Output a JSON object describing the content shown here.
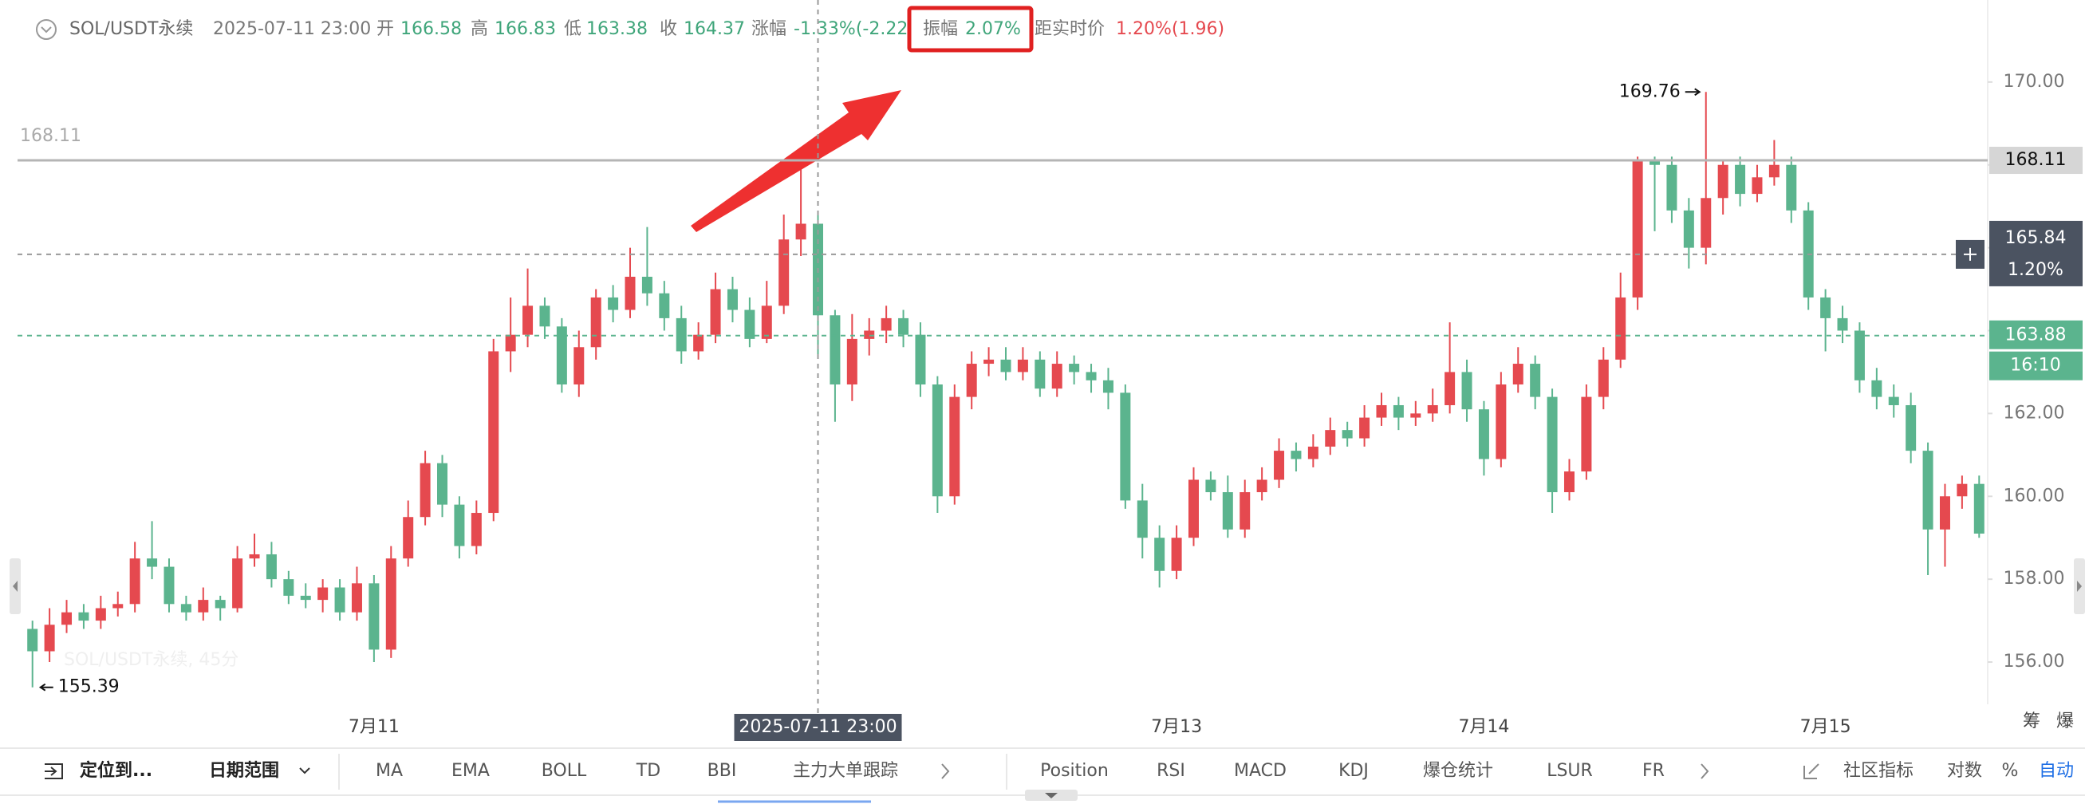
{
  "header": {
    "symbol": "SOL/USDT永续",
    "time": "2025-07-11 23:00",
    "open_label": "开",
    "high_label": "高",
    "low_label": "低",
    "close_label": "收",
    "change_label": "涨幅",
    "change": "-1.33%(-2.22",
    "amplitude_label": "振幅",
    "amplitude": "2.07%",
    "distance_label": "距实时价",
    "distance": "1.20%(1.96)"
  },
  "chart_data": {
    "type": "candlestick",
    "watermark": "SOL/USDT永续, 45分",
    "categories": [
      null,
      null,
      null,
      null,
      null,
      null,
      null,
      null,
      null,
      null,
      null,
      null,
      null,
      null,
      null,
      null,
      null,
      null,
      null,
      null,
      "7月11",
      null,
      null,
      null,
      null,
      null,
      null,
      null,
      null,
      null,
      null,
      null,
      null,
      null,
      null,
      null,
      null,
      null,
      null,
      null,
      null,
      null,
      null,
      null,
      null,
      null,
      null,
      null,
      null,
      null,
      null,
      null,
      null,
      null,
      null,
      null,
      null,
      null,
      null,
      null,
      null,
      null,
      null,
      null,
      null,
      null,
      null,
      "7月13",
      null,
      null,
      null,
      null,
      null,
      null,
      null,
      null,
      null,
      null,
      null,
      null,
      null,
      null,
      null,
      null,
      null,
      "7月14",
      null,
      null,
      null,
      null,
      null,
      null,
      null,
      null,
      null,
      null,
      null,
      null,
      null,
      null,
      null,
      null,
      null,
      null,
      null,
      "7月15",
      null,
      null,
      null,
      null,
      null,
      null,
      null,
      null,
      null
    ],
    "open": [
      156.8,
      156.26,
      156.9,
      157.2,
      157.0,
      157.3,
      157.4,
      158.5,
      158.3,
      157.4,
      157.2,
      157.5,
      157.3,
      158.5,
      158.6,
      158.0,
      157.6,
      157.5,
      157.8,
      157.2,
      157.9,
      156.3,
      158.5,
      159.5,
      160.8,
      159.8,
      158.8,
      159.6,
      163.5,
      163.9,
      164.6,
      164.1,
      162.7,
      163.6,
      164.8,
      164.5,
      165.3,
      164.9,
      164.3,
      163.5,
      163.9,
      165.0,
      164.5,
      163.8,
      164.6,
      166.2,
      166.58,
      164.37,
      162.7,
      163.8,
      164.0,
      164.3,
      163.9,
      162.7,
      160.0,
      162.4,
      163.2,
      163.3,
      163.0,
      163.3,
      162.6,
      163.2,
      163.0,
      162.8,
      162.5,
      159.9,
      159.0,
      158.2,
      159.0,
      160.4,
      160.1,
      159.2,
      160.1,
      160.4,
      161.1,
      160.9,
      161.2,
      161.6,
      161.4,
      161.9,
      162.2,
      161.9,
      162.0,
      162.2,
      163.0,
      162.1,
      160.9,
      162.7,
      163.2,
      162.4,
      160.1,
      160.6,
      162.4,
      163.3,
      164.8,
      168.1,
      168.0,
      166.9,
      166.0,
      167.2,
      168.0,
      167.3,
      167.7,
      168.0,
      166.9,
      164.8,
      164.3,
      164.0,
      162.8,
      162.4,
      162.2,
      161.1,
      159.2,
      160.0,
      160.3
    ],
    "high": [
      157.0,
      157.3,
      157.5,
      157.4,
      157.6,
      157.7,
      158.9,
      159.4,
      158.5,
      157.6,
      157.8,
      157.6,
      158.8,
      159.1,
      158.9,
      158.2,
      157.9,
      158.0,
      158.0,
      158.3,
      158.1,
      158.8,
      159.9,
      161.1,
      161.0,
      160.0,
      159.9,
      163.8,
      164.8,
      165.5,
      164.8,
      164.3,
      164.0,
      165.0,
      165.1,
      166.0,
      166.5,
      165.2,
      164.6,
      164.2,
      165.4,
      165.3,
      164.8,
      165.2,
      166.8,
      168.11,
      166.83,
      164.5,
      164.4,
      164.3,
      164.6,
      164.5,
      164.2,
      162.9,
      162.7,
      163.5,
      163.6,
      163.6,
      163.6,
      163.5,
      163.5,
      163.4,
      163.2,
      163.1,
      162.7,
      160.3,
      159.3,
      159.3,
      160.7,
      160.6,
      160.5,
      160.4,
      160.7,
      161.4,
      161.3,
      161.5,
      161.9,
      161.8,
      162.2,
      162.5,
      162.4,
      162.3,
      162.6,
      164.2,
      163.3,
      162.3,
      163.0,
      163.6,
      163.4,
      162.6,
      160.9,
      162.7,
      163.6,
      165.4,
      168.2,
      168.2,
      168.2,
      167.2,
      169.76,
      168.1,
      168.2,
      168.0,
      168.6,
      168.2,
      167.1,
      165.0,
      164.6,
      164.2,
      163.1,
      162.7,
      162.5,
      161.3,
      160.3,
      160.5,
      160.5
    ],
    "low": [
      155.39,
      156.0,
      156.7,
      156.8,
      156.8,
      157.1,
      157.2,
      158.0,
      157.2,
      157.0,
      157.0,
      157.0,
      157.2,
      158.3,
      157.8,
      157.4,
      157.3,
      157.2,
      157.0,
      157.0,
      156.0,
      156.1,
      158.3,
      159.3,
      159.5,
      158.5,
      158.6,
      159.4,
      163.0,
      163.6,
      163.8,
      162.5,
      162.4,
      163.3,
      164.2,
      164.3,
      164.6,
      164.0,
      163.2,
      163.3,
      163.7,
      164.2,
      163.6,
      163.7,
      164.4,
      165.8,
      163.38,
      161.8,
      162.3,
      163.4,
      163.7,
      163.6,
      162.4,
      159.6,
      159.8,
      162.1,
      162.9,
      162.8,
      162.8,
      162.4,
      162.4,
      162.7,
      162.5,
      162.1,
      159.7,
      158.5,
      157.8,
      158.0,
      158.8,
      159.9,
      159.0,
      159.0,
      159.9,
      160.2,
      160.6,
      160.7,
      161.0,
      161.2,
      161.2,
      161.7,
      161.6,
      161.7,
      161.8,
      162.0,
      161.8,
      160.5,
      160.7,
      162.5,
      162.1,
      159.6,
      159.9,
      160.4,
      162.1,
      163.1,
      164.5,
      166.4,
      166.6,
      165.5,
      165.6,
      166.8,
      167.0,
      167.1,
      167.5,
      166.6,
      164.5,
      163.5,
      163.7,
      162.5,
      162.1,
      161.9,
      160.8,
      158.1,
      158.3,
      159.7,
      159.0
    ],
    "close": [
      156.26,
      156.9,
      157.2,
      157.0,
      157.3,
      157.4,
      158.5,
      158.3,
      157.4,
      157.2,
      157.5,
      157.3,
      158.5,
      158.6,
      158.0,
      157.6,
      157.5,
      157.8,
      157.2,
      157.9,
      156.3,
      158.5,
      159.5,
      160.8,
      159.8,
      158.8,
      159.6,
      163.5,
      163.9,
      164.6,
      164.1,
      162.7,
      163.6,
      164.8,
      164.5,
      165.3,
      164.9,
      164.3,
      163.5,
      163.9,
      165.0,
      164.5,
      163.8,
      164.6,
      166.2,
      166.58,
      164.37,
      162.7,
      163.8,
      164.0,
      164.3,
      163.9,
      162.7,
      160.0,
      162.4,
      163.2,
      163.3,
      163.0,
      163.3,
      162.6,
      163.2,
      163.0,
      162.8,
      162.5,
      159.9,
      159.0,
      158.2,
      159.0,
      160.4,
      160.1,
      159.2,
      160.1,
      160.4,
      161.1,
      160.9,
      161.2,
      161.6,
      161.4,
      161.9,
      162.2,
      161.9,
      162.0,
      162.2,
      163.0,
      162.1,
      160.9,
      162.7,
      163.2,
      162.4,
      160.1,
      160.6,
      162.4,
      163.3,
      164.8,
      168.1,
      168.0,
      166.9,
      166.0,
      167.2,
      168.0,
      167.3,
      167.7,
      168.0,
      166.9,
      164.8,
      164.3,
      164.0,
      162.8,
      162.4,
      162.2,
      161.1,
      159.2,
      160.0,
      160.3,
      159.1
    ],
    "up_color": "#e5494f",
    "down_color": "#5bb48e",
    "ylim": [
      154.98,
      171.98
    ],
    "yticks": [
      {
        "value": 156,
        "label": "156.00"
      },
      {
        "value": 158,
        "label": "158.00"
      },
      {
        "value": 160,
        "label": "160.00"
      },
      {
        "value": 162,
        "label": "162.00"
      },
      {
        "value": 164,
        "label": "164.00"
      },
      {
        "value": 166,
        "label": "166.00"
      },
      {
        "value": 168,
        "label": "168.00"
      },
      {
        "value": 170,
        "label": "170.00"
      }
    ],
    "grid": false,
    "ref_line": 168.11,
    "crosshair_price": 165.84,
    "crosshair_change": "1.20%",
    "last_price": 163.88,
    "countdown": "16:10"
  },
  "toolbar": {
    "locate": "定位到...",
    "date_range": "日期范围",
    "indicators": [
      "MA",
      "EMA",
      "BOLL",
      "TD",
      "BBI",
      "主力大单跟踪"
    ],
    "sub_indicators": [
      "Position",
      "RSI",
      "MACD",
      "KDJ",
      "爆仓统计",
      "LSUR",
      "FR"
    ],
    "community": "社区指标",
    "log": "对数",
    "percent": "%",
    "auto": "自动"
  },
  "side": [
    "筹",
    "爆"
  ]
}
